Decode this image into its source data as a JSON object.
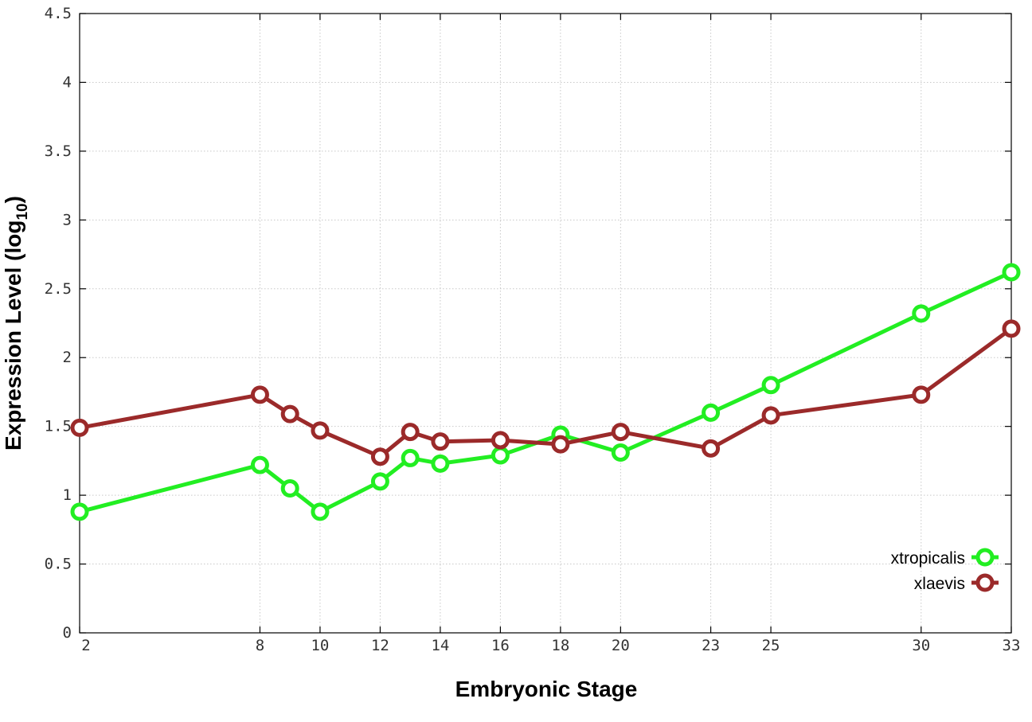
{
  "chart_data": {
    "type": "line",
    "title": "",
    "xlabel": "Embryonic Stage",
    "ylabel": {
      "text": "Expression Level (log",
      "subscript": "10",
      "close": ")"
    },
    "x": [
      2,
      8,
      9,
      10,
      12,
      13,
      14,
      16,
      18,
      20,
      23,
      25,
      30,
      33
    ],
    "xticks": [
      2,
      8,
      10,
      12,
      14,
      16,
      18,
      20,
      23,
      25,
      30,
      33
    ],
    "yticks": [
      "0",
      "0.5",
      "1",
      "1.5",
      "2",
      "2.5",
      "3",
      "3.5",
      "4",
      "4.5"
    ],
    "xlim": [
      2,
      33
    ],
    "ylim": [
      0,
      4.5
    ],
    "grid": true,
    "legend_position": "bottom-right",
    "series": [
      {
        "name": "xtropicalis",
        "color": "#22ee22",
        "marker": "open-circle",
        "values": [
          0.88,
          1.22,
          1.05,
          0.88,
          1.1,
          1.27,
          1.23,
          1.29,
          1.44,
          1.31,
          1.6,
          1.8,
          2.32,
          2.62
        ]
      },
      {
        "name": "xlaevis",
        "color": "#9b2a2a",
        "marker": "open-circle",
        "values": [
          1.49,
          1.73,
          1.59,
          1.47,
          1.28,
          1.46,
          1.39,
          1.4,
          1.37,
          1.46,
          1.34,
          1.58,
          1.73,
          2.21
        ]
      }
    ]
  }
}
